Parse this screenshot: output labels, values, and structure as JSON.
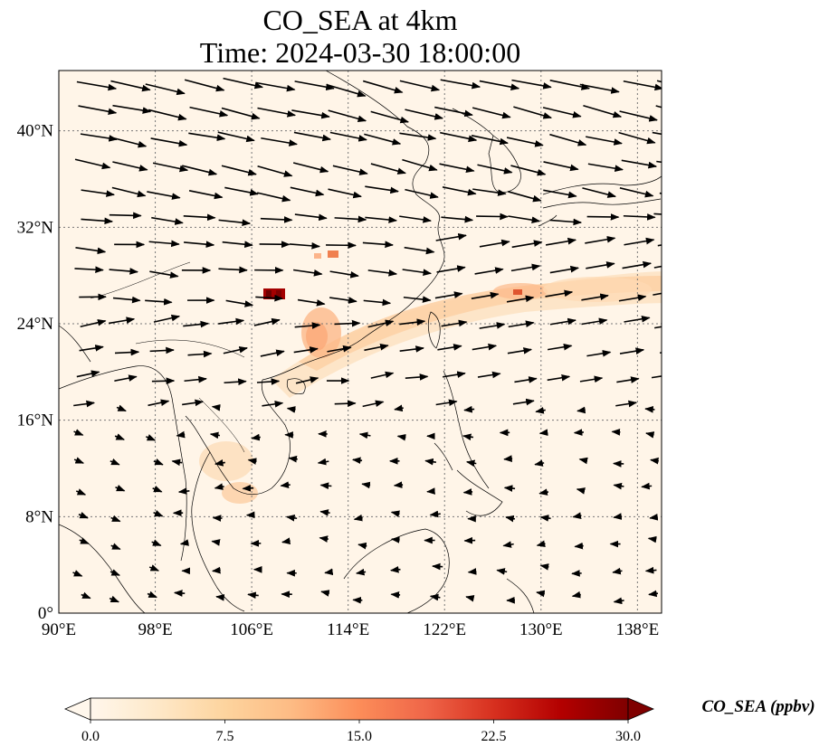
{
  "title": {
    "line1": "CO_SEA at 4km",
    "line2": "Time: 2024-03-30 18:00:00"
  },
  "map": {
    "lon_range": [
      90,
      140
    ],
    "lat_range": [
      0,
      45
    ],
    "lon_ticks": [
      "90°E",
      "98°E",
      "106°E",
      "114°E",
      "122°E",
      "130°E",
      "138°E"
    ],
    "lat_ticks": [
      "0°",
      "8°N",
      "16°N",
      "24°N",
      "32°N",
      "40°N"
    ],
    "gridlines": true,
    "coastlines": true,
    "wind_vectors": true
  },
  "colorbar": {
    "title": "CO_SEA (ppbv)",
    "colormap": "OrRd",
    "range": [
      0,
      30
    ],
    "extend": "both",
    "tick_labels": [
      "0.0",
      "7.5",
      "15.0",
      "22.5",
      "30.0"
    ],
    "colors": [
      "#fff7ec",
      "#fee8c8",
      "#fdd49e",
      "#fdbb84",
      "#fc8d59",
      "#ef6548",
      "#d7301f",
      "#b30000",
      "#7f0000"
    ]
  }
}
